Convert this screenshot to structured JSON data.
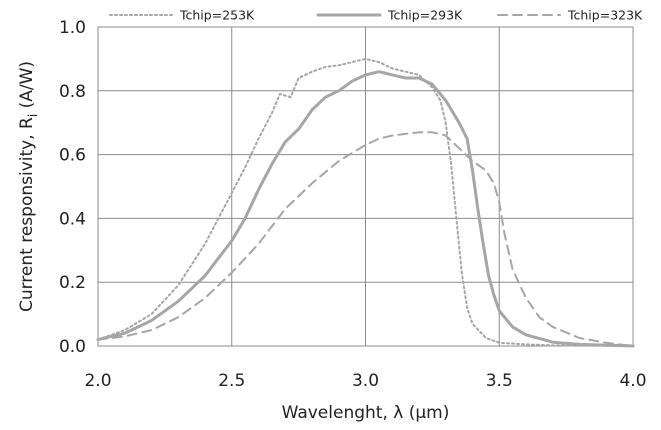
{
  "chart_data": {
    "type": "line",
    "title": "",
    "xlabel": "Wavelenght, λ (μm)",
    "ylabel_main": "Current responsivity, R",
    "ylabel_sub": "i",
    "ylabel_unit": " (A/W)",
    "xlim": [
      2.0,
      4.0
    ],
    "ylim": [
      0.0,
      1.0
    ],
    "x_ticks": [
      2.0,
      2.5,
      3.0,
      3.5,
      4.0
    ],
    "x_tick_labels": [
      "2.0",
      "2.5",
      "3.0",
      "3.5",
      "4.0"
    ],
    "y_ticks": [
      0.0,
      0.2,
      0.4,
      0.6,
      0.8,
      1.0
    ],
    "y_tick_labels": [
      "0.0",
      "0.2",
      "0.4",
      "0.6",
      "0.8",
      "1.0"
    ],
    "grid": true,
    "legend_position": "top",
    "series": [
      {
        "name": "Tchip=253K",
        "style": "dotted",
        "color": "#a6a6a6",
        "x": [
          2.0,
          2.1,
          2.2,
          2.3,
          2.4,
          2.5,
          2.55,
          2.6,
          2.65,
          2.68,
          2.72,
          2.75,
          2.8,
          2.85,
          2.9,
          2.95,
          3.0,
          3.05,
          3.1,
          3.15,
          3.2,
          3.25,
          3.28,
          3.3,
          3.32,
          3.34,
          3.36,
          3.38,
          3.4,
          3.45,
          3.5,
          3.6,
          3.7,
          4.0
        ],
        "y": [
          0.02,
          0.05,
          0.1,
          0.19,
          0.32,
          0.48,
          0.56,
          0.65,
          0.73,
          0.79,
          0.78,
          0.84,
          0.86,
          0.875,
          0.88,
          0.89,
          0.9,
          0.89,
          0.87,
          0.86,
          0.85,
          0.81,
          0.77,
          0.7,
          0.57,
          0.4,
          0.23,
          0.12,
          0.07,
          0.025,
          0.01,
          0.005,
          0.002,
          0.0
        ]
      },
      {
        "name": "Tchip=293K",
        "style": "solid",
        "color": "#a6a6a6",
        "x": [
          2.0,
          2.1,
          2.2,
          2.3,
          2.4,
          2.5,
          2.55,
          2.6,
          2.65,
          2.7,
          2.75,
          2.8,
          2.85,
          2.9,
          2.95,
          3.0,
          3.05,
          3.1,
          3.15,
          3.2,
          3.25,
          3.3,
          3.35,
          3.38,
          3.4,
          3.42,
          3.44,
          3.46,
          3.48,
          3.5,
          3.55,
          3.6,
          3.7,
          3.8,
          4.0
        ],
        "y": [
          0.02,
          0.04,
          0.08,
          0.14,
          0.22,
          0.33,
          0.4,
          0.49,
          0.57,
          0.64,
          0.68,
          0.74,
          0.78,
          0.8,
          0.83,
          0.85,
          0.86,
          0.85,
          0.84,
          0.84,
          0.82,
          0.77,
          0.7,
          0.65,
          0.55,
          0.43,
          0.32,
          0.22,
          0.16,
          0.11,
          0.06,
          0.035,
          0.012,
          0.005,
          0.0
        ]
      },
      {
        "name": "Tchip=323K",
        "style": "dashed",
        "color": "#a6a6a6",
        "x": [
          2.0,
          2.1,
          2.2,
          2.3,
          2.4,
          2.5,
          2.6,
          2.7,
          2.8,
          2.9,
          3.0,
          3.05,
          3.1,
          3.15,
          3.2,
          3.25,
          3.3,
          3.35,
          3.4,
          3.45,
          3.48,
          3.5,
          3.52,
          3.55,
          3.6,
          3.65,
          3.7,
          3.8,
          3.9,
          4.0
        ],
        "y": [
          0.02,
          0.03,
          0.05,
          0.09,
          0.15,
          0.23,
          0.32,
          0.43,
          0.51,
          0.58,
          0.63,
          0.65,
          0.66,
          0.665,
          0.67,
          0.67,
          0.66,
          0.62,
          0.58,
          0.55,
          0.51,
          0.45,
          0.35,
          0.24,
          0.15,
          0.09,
          0.06,
          0.025,
          0.01,
          0.0
        ]
      }
    ]
  }
}
